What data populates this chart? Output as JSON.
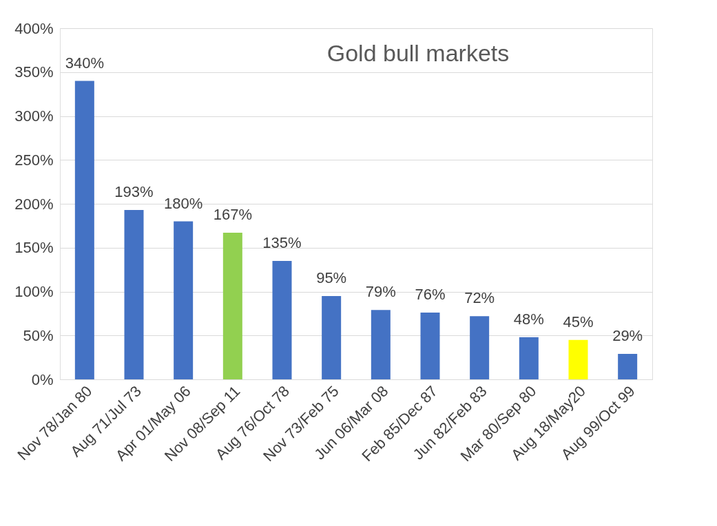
{
  "chart_data": {
    "type": "bar",
    "title": "Gold bull markets",
    "categories": [
      "Nov 78/Jan 80",
      "Aug 71/Jul 73",
      "Apr 01/May 06",
      "Nov 08/Sep 11",
      "Aug 76/Oct 78",
      "Nov 73/Feb 75",
      "Jun 06/Mar 08",
      "Feb 85/Dec 87",
      "Jun 82/Feb 83",
      "Mar 80/Sep 80",
      "Aug 18/May20",
      "Aug 99/Oct 99"
    ],
    "values": [
      340,
      193,
      180,
      167,
      135,
      95,
      79,
      76,
      72,
      48,
      45,
      29
    ],
    "value_labels": [
      "340%",
      "193%",
      "180%",
      "167%",
      "135%",
      "95%",
      "79%",
      "76%",
      "72%",
      "48%",
      "45%",
      "29%"
    ],
    "colors": [
      "#4472c4",
      "#4472c4",
      "#4472c4",
      "#92d050",
      "#4472c4",
      "#4472c4",
      "#4472c4",
      "#4472c4",
      "#4472c4",
      "#4472c4",
      "#ffff00",
      "#4472c4"
    ],
    "ylim": [
      0,
      400
    ],
    "yticks": [
      {
        "value": 0,
        "label": "0%"
      },
      {
        "value": 50,
        "label": "50%"
      },
      {
        "value": 100,
        "label": "100%"
      },
      {
        "value": 150,
        "label": "150%"
      },
      {
        "value": 200,
        "label": "200%"
      },
      {
        "value": 250,
        "label": "250%"
      },
      {
        "value": 300,
        "label": "300%"
      },
      {
        "value": 350,
        "label": "350%"
      },
      {
        "value": 400,
        "label": "400%"
      }
    ],
    "grid": "y"
  }
}
